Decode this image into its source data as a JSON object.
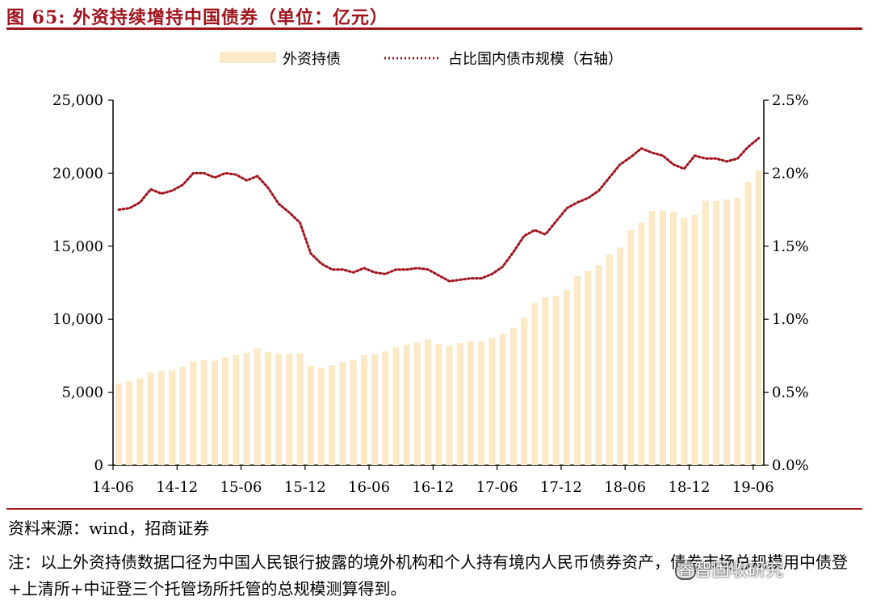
{
  "figure": {
    "title": "图 65:  外资持续增持中国债券（单位：亿元）",
    "source": "资料来源：wind，招商证券",
    "note": "注：以上外资持债数据口径为中国人民银行披露的境外机构和个人持有境内人民币债券资产，债券市场总规模用中债登+上清所+中证登三个托管场所托管的总规模测算得到。",
    "watermark": "睿智固收研究",
    "accent_color": "#a0141e"
  },
  "chart_data": {
    "type": "bar",
    "legend_position": "top-center",
    "grid": false,
    "x_tick_labels": [
      "14-06",
      "14-12",
      "15-06",
      "15-12",
      "16-06",
      "16-12",
      "17-06",
      "17-12",
      "18-06",
      "18-12",
      "19-06"
    ],
    "y_left": {
      "ylim": [
        0,
        25000
      ],
      "tick_labels": [
        "0",
        "5,000",
        "10,000",
        "15,000",
        "20,000",
        "25,000"
      ]
    },
    "y_right": {
      "ylim": [
        0,
        0.025
      ],
      "tick_labels": [
        "0.0%",
        "0.5%",
        "1.0%",
        "1.5%",
        "2.0%",
        "2.5%"
      ]
    },
    "x": [
      "14-06",
      "14-07",
      "14-08",
      "14-09",
      "14-10",
      "14-11",
      "14-12",
      "15-01",
      "15-02",
      "15-03",
      "15-04",
      "15-05",
      "15-06",
      "15-07",
      "15-08",
      "15-09",
      "15-10",
      "15-11",
      "15-12",
      "16-01",
      "16-02",
      "16-03",
      "16-04",
      "16-05",
      "16-06",
      "16-07",
      "16-08",
      "16-09",
      "16-10",
      "16-11",
      "16-12",
      "17-01",
      "17-02",
      "17-03",
      "17-04",
      "17-05",
      "17-06",
      "17-07",
      "17-08",
      "17-09",
      "17-10",
      "17-11",
      "17-12",
      "18-01",
      "18-02",
      "18-03",
      "18-04",
      "18-05",
      "18-06",
      "18-07",
      "18-08",
      "18-09",
      "18-10",
      "18-11",
      "18-12",
      "19-01",
      "19-02",
      "19-03",
      "19-04",
      "19-05",
      "19-06"
    ],
    "series": [
      {
        "name": "外资持债",
        "kind": "bar",
        "axis": "left",
        "color": "#fbe9c8",
        "values": [
          5600,
          5750,
          5950,
          6350,
          6450,
          6500,
          6750,
          7100,
          7200,
          7150,
          7400,
          7550,
          7700,
          8000,
          7750,
          7650,
          7650,
          7650,
          6800,
          6650,
          6850,
          7050,
          7200,
          7550,
          7600,
          7800,
          8100,
          8250,
          8400,
          8600,
          8300,
          8200,
          8350,
          8500,
          8500,
          8700,
          9000,
          9400,
          10100,
          11100,
          11500,
          11600,
          12000,
          12950,
          13300,
          13700,
          14400,
          14900,
          16100,
          16600,
          17400,
          17450,
          17350,
          16950,
          17150,
          18100,
          18100,
          18200,
          18300,
          19400,
          20200
        ]
      },
      {
        "name": "占比国内债市规模（右轴）",
        "kind": "line",
        "axis": "right",
        "color": "#a0141e",
        "values": [
          0.0175,
          0.0176,
          0.018,
          0.0189,
          0.0186,
          0.0188,
          0.0192,
          0.02,
          0.02,
          0.0197,
          0.02,
          0.0199,
          0.0195,
          0.0198,
          0.019,
          0.0179,
          0.0173,
          0.0166,
          0.0145,
          0.0138,
          0.0134,
          0.0134,
          0.0132,
          0.0135,
          0.0132,
          0.0131,
          0.0134,
          0.0134,
          0.0135,
          0.0134,
          0.013,
          0.0126,
          0.0127,
          0.0128,
          0.0128,
          0.0131,
          0.0136,
          0.0146,
          0.0157,
          0.0161,
          0.0158,
          0.0167,
          0.0176,
          0.018,
          0.0183,
          0.0188,
          0.0197,
          0.0206,
          0.0211,
          0.0217,
          0.0214,
          0.0212,
          0.0206,
          0.0203,
          0.0212,
          0.021,
          0.021,
          0.0208,
          0.021,
          0.0218,
          0.0224
        ]
      }
    ]
  }
}
